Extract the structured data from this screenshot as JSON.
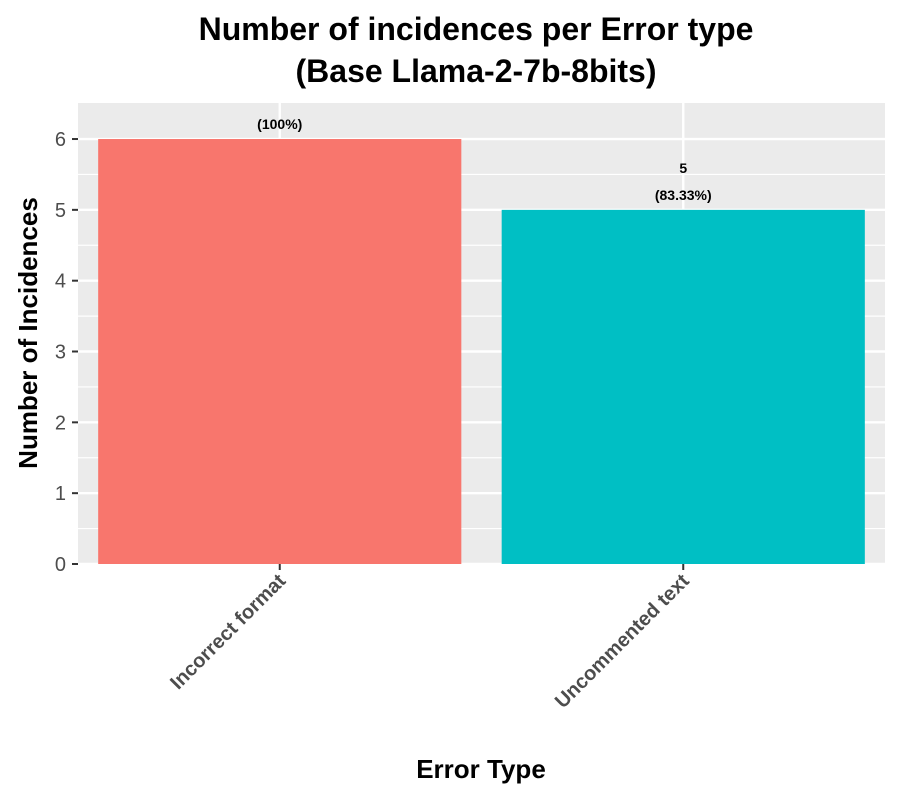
{
  "chart_data": {
    "type": "bar",
    "title": [
      "Number of incidences per Error type",
      "(Base Llama-2-7b-8bits)"
    ],
    "xlabel": "Error Type",
    "ylabel": "Number of Incidences",
    "categories": [
      "Incorrect format",
      "Uncommented text"
    ],
    "values": [
      6,
      5
    ],
    "data_labels": [
      {
        "count": "",
        "percent": "(100%)"
      },
      {
        "count": "5",
        "percent": "(83.33%)"
      }
    ],
    "colors": [
      "#F8766D",
      "#00BFC4"
    ],
    "ylim": [
      0,
      6.3
    ],
    "yticks": [
      0,
      1,
      2,
      3,
      4,
      5,
      6
    ],
    "panel_background": "#EBEBEB",
    "grid": true,
    "legend": "none"
  }
}
